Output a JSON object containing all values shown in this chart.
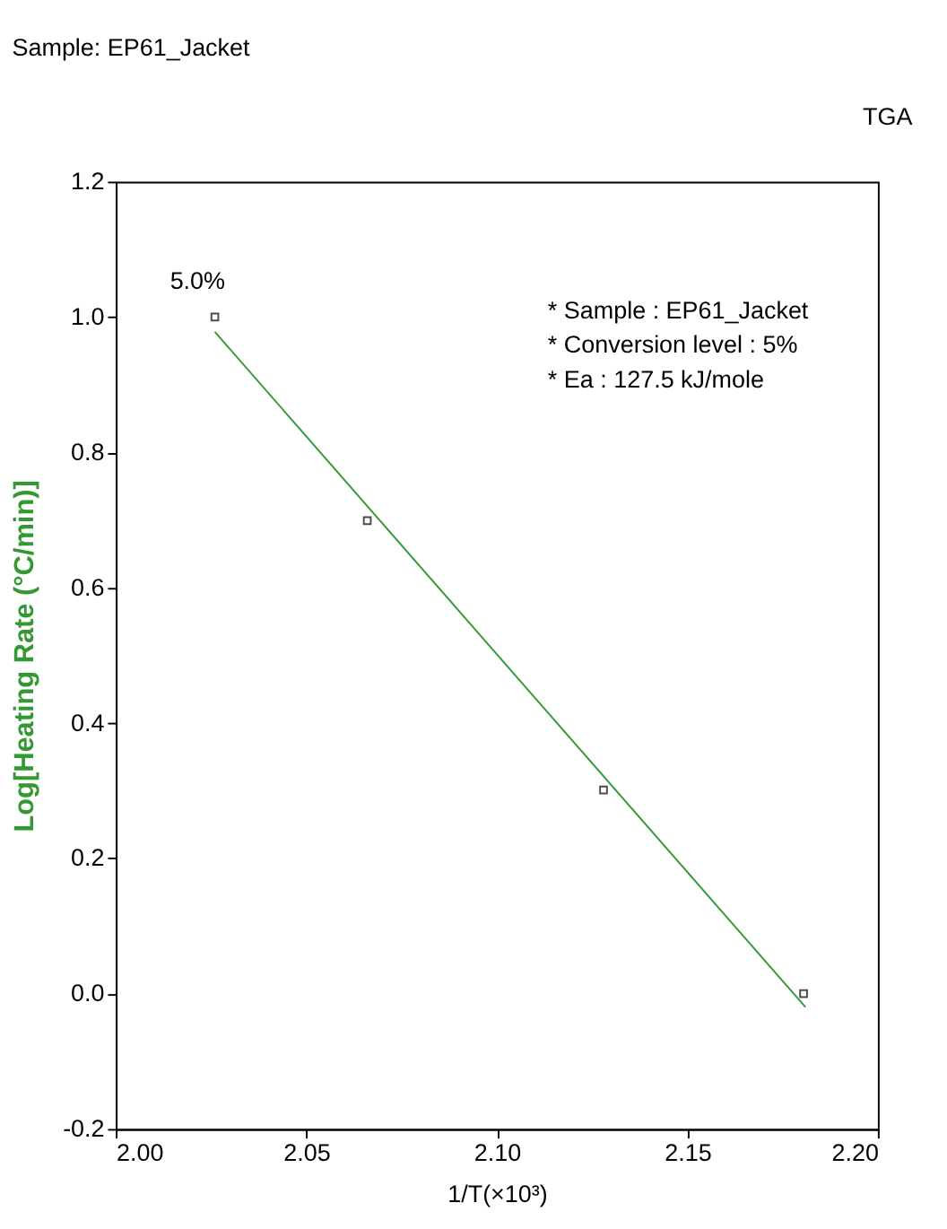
{
  "chart_data": {
    "type": "scatter",
    "title": "Sample: EP61_Jacket",
    "xlabel": "1/T(×10³)",
    "ylabel": "Log[Heating Rate (°C/min)]",
    "series": [
      {
        "color": "#000000",
        "marker": "square",
        "x": [
          2.026,
          2.066,
          2.128,
          2.1805
        ],
        "values": [
          1.0,
          0.699,
          0.301,
          0.0
        ]
      },
      {
        "type": "line",
        "color": "#339933",
        "marker": "none",
        "line_style": "solid",
        "x": [
          2.026,
          2.181
        ],
        "values": [
          0.978,
          -0.02
        ]
      }
    ],
    "xlim": [
      2.0,
      2.2
    ],
    "xticks": [
      {
        "value": 2.0,
        "label": "2.00"
      },
      {
        "value": 2.05,
        "label": "2.05"
      },
      {
        "value": 2.1,
        "label": "2.10"
      },
      {
        "value": 2.15,
        "label": "2.15"
      },
      {
        "value": 2.2,
        "label": "2.20"
      }
    ],
    "ylim": [
      -0.2,
      1.2
    ],
    "yticks": [
      {
        "value": -0.2,
        "label": "-0.2"
      },
      {
        "value": 0.0,
        "label": "0.0"
      },
      {
        "value": 0.2,
        "label": "0.2"
      },
      {
        "value": 0.4,
        "label": "0.4"
      },
      {
        "value": 0.6,
        "label": "0.6"
      },
      {
        "value": 0.8,
        "label": "0.8"
      },
      {
        "value": 1.0,
        "label": "1.0"
      },
      {
        "value": 1.2,
        "label": "1.2"
      }
    ],
    "grid": false,
    "legend": false,
    "annotations": [
      "TGA",
      "* Sample : EP61_Jacket",
      "* Conversion level : 5%",
      "* Ea : 127.5 kJ/mole",
      {
        "text": "5.0%",
        "x": 2.026,
        "y": 1.0
      }
    ]
  }
}
